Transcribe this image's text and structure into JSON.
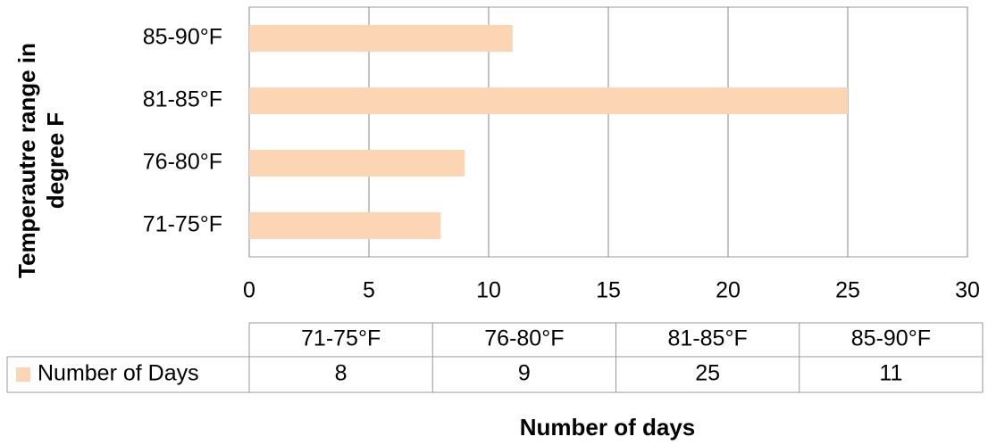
{
  "chart_data": {
    "type": "bar",
    "orientation": "horizontal",
    "xlabel": "Number of days",
    "ylabel": "Temperautre range in degree F",
    "categories": [
      "71-75°F",
      "76-80°F",
      "81-85°F",
      "85-90°F"
    ],
    "series": [
      {
        "name": "Number of Days",
        "color": "#fcd5b5",
        "values": [
          8,
          9,
          25,
          11
        ]
      }
    ],
    "xlim": [
      0,
      30
    ],
    "xticks": [
      0,
      5,
      10,
      15,
      20,
      25,
      30
    ],
    "grid": true,
    "data_table": true
  }
}
